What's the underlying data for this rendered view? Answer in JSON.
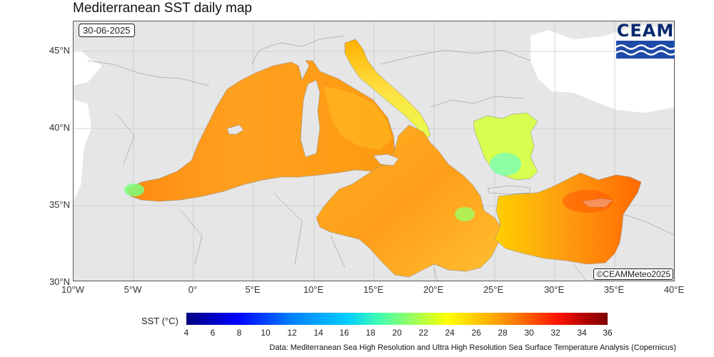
{
  "title": "Mediterranean SST daily map",
  "date": "30-06-2025",
  "credit": "©CEAMMeteo2025",
  "logo": {
    "text": "CEAM",
    "color": "#0a2a6e"
  },
  "lat_ticks": [
    "45°N",
    "40°N",
    "35°N",
    "30°N"
  ],
  "lon_ticks": [
    "10°W",
    "5°W",
    "0°",
    "5°E",
    "10°E",
    "15°E",
    "20°E",
    "25°E",
    "30°E",
    "35°E",
    "40°E"
  ],
  "colorbar": {
    "label": "SST (°C)",
    "ticks": [
      "4",
      "6",
      "8",
      "10",
      "12",
      "14",
      "16",
      "18",
      "20",
      "22",
      "24",
      "26",
      "28",
      "30",
      "32",
      "34",
      "36"
    ]
  },
  "source": "Data: Mediterranean Sea High Resolution and Ultra High Resolution Sea Surface Temperature Analysis (Copernicus)",
  "colors": {
    "land": "#e6e6e6",
    "border": "#666666",
    "sea_warm": "#ff8c00",
    "sea_mild": "#ffd000",
    "sea_cool": "#a8ff50"
  }
}
